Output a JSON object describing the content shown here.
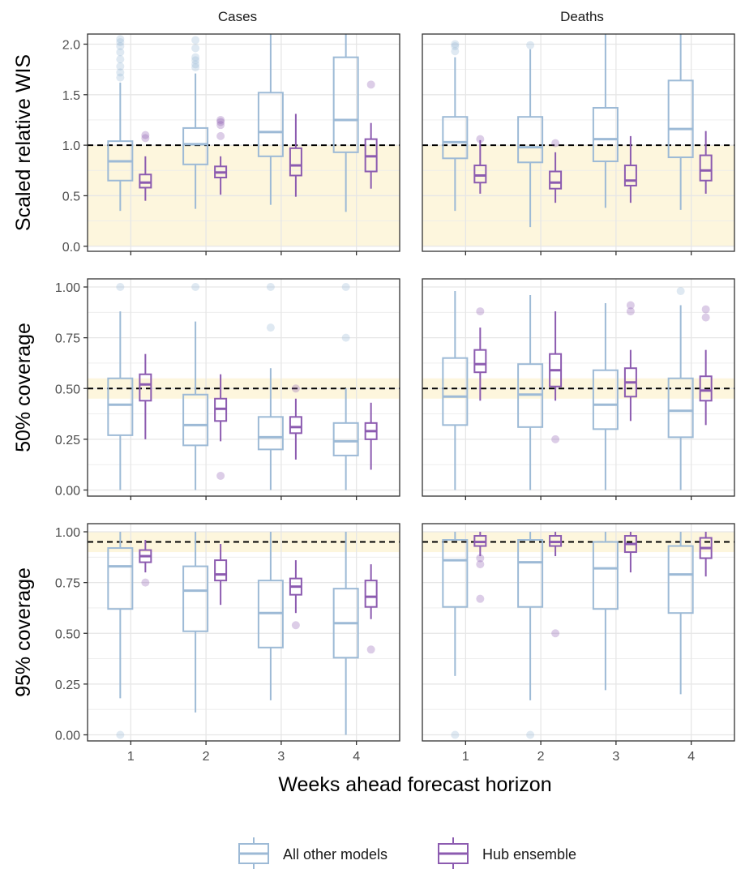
{
  "chart_data": {
    "type": "box",
    "facet_columns": [
      "Cases",
      "Deaths"
    ],
    "x_categories": [
      "1",
      "2",
      "3",
      "4"
    ],
    "xlabel": "Weeks ahead forecast horizon",
    "colors": {
      "All other models": "#9dbad6",
      "Hub ensemble": "#8c5bb0",
      "target_band": "#fdf6dd",
      "reference_line": "#000000"
    },
    "legend": {
      "position": "bottom",
      "entries": [
        "All other models",
        "Hub ensemble"
      ]
    },
    "grid": true,
    "panels": [
      {
        "ylabel": "Scaled relative WIS",
        "ylim": [
          -0.05,
          2.1
        ],
        "yticks": [
          "0.0",
          "0.5",
          "1.0",
          "1.5",
          "2.0"
        ],
        "reference_line": 1.0,
        "band": [
          0.0,
          1.0
        ],
        "columns": [
          {
            "facet": "Cases",
            "series": [
              {
                "name": "All other models",
                "boxes": [
                  {
                    "x": "1",
                    "min": 0.35,
                    "q1": 0.65,
                    "median": 0.84,
                    "q3": 1.04,
                    "max": 1.62,
                    "outliers": [
                      1.67,
                      1.72,
                      1.78,
                      1.85,
                      1.92,
                      1.98,
                      2.02,
                      2.05
                    ]
                  },
                  {
                    "x": "2",
                    "min": 0.37,
                    "q1": 0.81,
                    "median": 1.01,
                    "q3": 1.17,
                    "max": 1.71,
                    "outliers": [
                      1.77,
                      1.8,
                      1.84,
                      1.87,
                      1.96,
                      2.04
                    ]
                  },
                  {
                    "x": "3",
                    "min": 0.41,
                    "q1": 0.89,
                    "median": 1.13,
                    "q3": 1.52,
                    "max": 2.1,
                    "outliers": []
                  },
                  {
                    "x": "4",
                    "min": 0.34,
                    "q1": 0.93,
                    "median": 1.25,
                    "q3": 1.87,
                    "max": 2.1,
                    "outliers": []
                  }
                ]
              },
              {
                "name": "Hub ensemble",
                "boxes": [
                  {
                    "x": "1",
                    "min": 0.45,
                    "q1": 0.58,
                    "median": 0.63,
                    "q3": 0.71,
                    "max": 0.89,
                    "outliers": [
                      1.07,
                      1.1
                    ]
                  },
                  {
                    "x": "2",
                    "min": 0.51,
                    "q1": 0.68,
                    "median": 0.73,
                    "q3": 0.79,
                    "max": 0.89,
                    "outliers": [
                      1.09,
                      1.2,
                      1.23,
                      1.25
                    ]
                  },
                  {
                    "x": "3",
                    "min": 0.49,
                    "q1": 0.7,
                    "median": 0.8,
                    "q3": 0.97,
                    "max": 1.31,
                    "outliers": []
                  },
                  {
                    "x": "4",
                    "min": 0.57,
                    "q1": 0.74,
                    "median": 0.89,
                    "q3": 1.06,
                    "max": 1.22,
                    "outliers": [
                      1.6
                    ]
                  }
                ]
              }
            ]
          },
          {
            "facet": "Deaths",
            "series": [
              {
                "name": "All other models",
                "boxes": [
                  {
                    "x": "1",
                    "min": 0.35,
                    "q1": 0.87,
                    "median": 1.03,
                    "q3": 1.28,
                    "max": 1.87,
                    "outliers": [
                      1.93,
                      1.98,
                      2.0
                    ]
                  },
                  {
                    "x": "2",
                    "min": 0.19,
                    "q1": 0.83,
                    "median": 0.98,
                    "q3": 1.28,
                    "max": 1.95,
                    "outliers": [
                      1.99
                    ]
                  },
                  {
                    "x": "3",
                    "min": 0.38,
                    "q1": 0.84,
                    "median": 1.06,
                    "q3": 1.37,
                    "max": 2.1,
                    "outliers": []
                  },
                  {
                    "x": "4",
                    "min": 0.36,
                    "q1": 0.88,
                    "median": 1.16,
                    "q3": 1.64,
                    "max": 2.1,
                    "outliers": []
                  }
                ]
              },
              {
                "name": "Hub ensemble",
                "boxes": [
                  {
                    "x": "1",
                    "min": 0.52,
                    "q1": 0.63,
                    "median": 0.7,
                    "q3": 0.8,
                    "max": 1.05,
                    "outliers": [
                      1.06
                    ]
                  },
                  {
                    "x": "2",
                    "min": 0.43,
                    "q1": 0.57,
                    "median": 0.63,
                    "q3": 0.74,
                    "max": 0.93,
                    "outliers": [
                      1.02
                    ]
                  },
                  {
                    "x": "3",
                    "min": 0.43,
                    "q1": 0.6,
                    "median": 0.65,
                    "q3": 0.8,
                    "max": 1.09,
                    "outliers": []
                  },
                  {
                    "x": "4",
                    "min": 0.52,
                    "q1": 0.65,
                    "median": 0.75,
                    "q3": 0.9,
                    "max": 1.14,
                    "outliers": []
                  }
                ]
              }
            ]
          }
        ]
      },
      {
        "ylabel": "50% coverage",
        "ylim": [
          -0.03,
          1.04
        ],
        "yticks": [
          "0.00",
          "0.25",
          "0.50",
          "0.75",
          "1.00"
        ],
        "reference_line": 0.5,
        "band": [
          0.45,
          0.55
        ],
        "columns": [
          {
            "facet": "Cases",
            "series": [
              {
                "name": "All other models",
                "boxes": [
                  {
                    "x": "1",
                    "min": 0.0,
                    "q1": 0.27,
                    "median": 0.42,
                    "q3": 0.55,
                    "max": 0.88,
                    "outliers": [
                      1.0
                    ]
                  },
                  {
                    "x": "2",
                    "min": 0.0,
                    "q1": 0.22,
                    "median": 0.32,
                    "q3": 0.47,
                    "max": 0.83,
                    "outliers": [
                      1.0
                    ]
                  },
                  {
                    "x": "3",
                    "min": 0.0,
                    "q1": 0.2,
                    "median": 0.26,
                    "q3": 0.36,
                    "max": 0.6,
                    "outliers": [
                      0.8,
                      1.0
                    ]
                  },
                  {
                    "x": "4",
                    "min": 0.0,
                    "q1": 0.17,
                    "median": 0.24,
                    "q3": 0.33,
                    "max": 0.5,
                    "outliers": [
                      0.75,
                      1.0
                    ]
                  }
                ]
              },
              {
                "name": "Hub ensemble",
                "boxes": [
                  {
                    "x": "1",
                    "min": 0.25,
                    "q1": 0.44,
                    "median": 0.52,
                    "q3": 0.57,
                    "max": 0.67,
                    "outliers": []
                  },
                  {
                    "x": "2",
                    "min": 0.24,
                    "q1": 0.34,
                    "median": 0.4,
                    "q3": 0.45,
                    "max": 0.57,
                    "outliers": [
                      0.07
                    ]
                  },
                  {
                    "x": "3",
                    "min": 0.15,
                    "q1": 0.28,
                    "median": 0.31,
                    "q3": 0.36,
                    "max": 0.45,
                    "outliers": [
                      0.5
                    ]
                  },
                  {
                    "x": "4",
                    "min": 0.1,
                    "q1": 0.25,
                    "median": 0.29,
                    "q3": 0.33,
                    "max": 0.43,
                    "outliers": []
                  }
                ]
              }
            ]
          },
          {
            "facet": "Deaths",
            "series": [
              {
                "name": "All other models",
                "boxes": [
                  {
                    "x": "1",
                    "min": 0.0,
                    "q1": 0.32,
                    "median": 0.46,
                    "q3": 0.65,
                    "max": 0.98,
                    "outliers": []
                  },
                  {
                    "x": "2",
                    "min": 0.0,
                    "q1": 0.31,
                    "median": 0.47,
                    "q3": 0.62,
                    "max": 0.96,
                    "outliers": []
                  },
                  {
                    "x": "3",
                    "min": 0.0,
                    "q1": 0.3,
                    "median": 0.42,
                    "q3": 0.59,
                    "max": 0.92,
                    "outliers": []
                  },
                  {
                    "x": "4",
                    "min": 0.0,
                    "q1": 0.26,
                    "median": 0.39,
                    "q3": 0.55,
                    "max": 0.91,
                    "outliers": [
                      0.98
                    ]
                  }
                ]
              },
              {
                "name": "Hub ensemble",
                "boxes": [
                  {
                    "x": "1",
                    "min": 0.44,
                    "q1": 0.58,
                    "median": 0.62,
                    "q3": 0.69,
                    "max": 0.8,
                    "outliers": [
                      0.88
                    ]
                  },
                  {
                    "x": "2",
                    "min": 0.44,
                    "q1": 0.51,
                    "median": 0.59,
                    "q3": 0.67,
                    "max": 0.88,
                    "outliers": [
                      0.25
                    ]
                  },
                  {
                    "x": "3",
                    "min": 0.34,
                    "q1": 0.46,
                    "median": 0.53,
                    "q3": 0.6,
                    "max": 0.69,
                    "outliers": [
                      0.88,
                      0.91
                    ]
                  },
                  {
                    "x": "4",
                    "min": 0.32,
                    "q1": 0.44,
                    "median": 0.49,
                    "q3": 0.56,
                    "max": 0.69,
                    "outliers": [
                      0.85,
                      0.89
                    ]
                  }
                ]
              }
            ]
          }
        ]
      },
      {
        "ylabel": "95% coverage",
        "ylim": [
          -0.03,
          1.04
        ],
        "yticks": [
          "0.00",
          "0.25",
          "0.50",
          "0.75",
          "1.00"
        ],
        "reference_line": 0.95,
        "band": [
          0.9,
          1.0
        ],
        "columns": [
          {
            "facet": "Cases",
            "series": [
              {
                "name": "All other models",
                "boxes": [
                  {
                    "x": "1",
                    "min": 0.18,
                    "q1": 0.62,
                    "median": 0.83,
                    "q3": 0.92,
                    "max": 1.0,
                    "outliers": [
                      0.0
                    ]
                  },
                  {
                    "x": "2",
                    "min": 0.11,
                    "q1": 0.51,
                    "median": 0.71,
                    "q3": 0.83,
                    "max": 1.0,
                    "outliers": []
                  },
                  {
                    "x": "3",
                    "min": 0.17,
                    "q1": 0.43,
                    "median": 0.6,
                    "q3": 0.76,
                    "max": 1.0,
                    "outliers": []
                  },
                  {
                    "x": "4",
                    "min": 0.0,
                    "q1": 0.38,
                    "median": 0.55,
                    "q3": 0.72,
                    "max": 1.0,
                    "outliers": []
                  }
                ]
              },
              {
                "name": "Hub ensemble",
                "boxes": [
                  {
                    "x": "1",
                    "min": 0.8,
                    "q1": 0.85,
                    "median": 0.88,
                    "q3": 0.91,
                    "max": 0.96,
                    "outliers": [
                      0.75
                    ]
                  },
                  {
                    "x": "2",
                    "min": 0.64,
                    "q1": 0.76,
                    "median": 0.79,
                    "q3": 0.86,
                    "max": 0.94,
                    "outliers": []
                  },
                  {
                    "x": "3",
                    "min": 0.6,
                    "q1": 0.69,
                    "median": 0.73,
                    "q3": 0.77,
                    "max": 0.86,
                    "outliers": [
                      0.54
                    ]
                  },
                  {
                    "x": "4",
                    "min": 0.57,
                    "q1": 0.63,
                    "median": 0.68,
                    "q3": 0.76,
                    "max": 0.84,
                    "outliers": [
                      0.42
                    ]
                  }
                ]
              }
            ]
          },
          {
            "facet": "Deaths",
            "series": [
              {
                "name": "All other models",
                "boxes": [
                  {
                    "x": "1",
                    "min": 0.29,
                    "q1": 0.63,
                    "median": 0.86,
                    "q3": 0.96,
                    "max": 1.0,
                    "outliers": [
                      0.0
                    ]
                  },
                  {
                    "x": "2",
                    "min": 0.17,
                    "q1": 0.63,
                    "median": 0.85,
                    "q3": 0.96,
                    "max": 1.0,
                    "outliers": [
                      0.0
                    ]
                  },
                  {
                    "x": "3",
                    "min": 0.22,
                    "q1": 0.62,
                    "median": 0.82,
                    "q3": 0.95,
                    "max": 1.0,
                    "outliers": []
                  },
                  {
                    "x": "4",
                    "min": 0.2,
                    "q1": 0.6,
                    "median": 0.79,
                    "q3": 0.93,
                    "max": 1.0,
                    "outliers": []
                  }
                ]
              },
              {
                "name": "Hub ensemble",
                "boxes": [
                  {
                    "x": "1",
                    "min": 0.88,
                    "q1": 0.93,
                    "median": 0.95,
                    "q3": 0.98,
                    "max": 1.0,
                    "outliers": [
                      0.67,
                      0.84,
                      0.87
                    ]
                  },
                  {
                    "x": "2",
                    "min": 0.88,
                    "q1": 0.93,
                    "median": 0.95,
                    "q3": 0.98,
                    "max": 1.0,
                    "outliers": [
                      0.5
                    ]
                  },
                  {
                    "x": "3",
                    "min": 0.8,
                    "q1": 0.9,
                    "median": 0.94,
                    "q3": 0.98,
                    "max": 1.0,
                    "outliers": []
                  },
                  {
                    "x": "4",
                    "min": 0.78,
                    "q1": 0.87,
                    "median": 0.92,
                    "q3": 0.97,
                    "max": 1.0,
                    "outliers": []
                  }
                ]
              }
            ]
          }
        ]
      }
    ]
  }
}
